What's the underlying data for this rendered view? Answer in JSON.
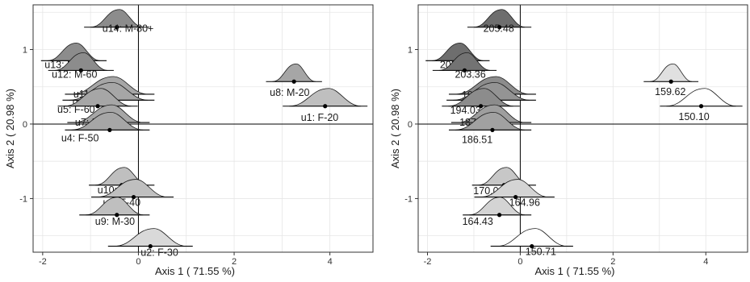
{
  "chart_data": [
    {
      "type": "scatter",
      "xlabel": "Axis  1  ( 71.55 %)",
      "ylabel": "Axis  2  ( 20.98 %)",
      "xlim": [
        -2.2,
        4.9
      ],
      "ylim": [
        -1.72,
        1.6
      ],
      "xticks": [
        -2,
        0,
        2,
        4
      ],
      "yticks": [
        -1,
        0,
        1
      ],
      "grid": true,
      "points": [
        {
          "label": "u14: M-80+",
          "x": -0.45,
          "y": 1.3,
          "shade": "#8c8c8c",
          "ci": [
            -1.0,
            0.1
          ]
        },
        {
          "label": "u13: M-70",
          "x": -1.35,
          "y": 0.85,
          "shade": "#8c8c8c",
          "ci": [
            -1.9,
            -0.8
          ]
        },
        {
          "label": "u12: M-60",
          "x": -1.2,
          "y": 0.72,
          "shade": "#8c8c8c",
          "ci": [
            -1.75,
            -0.65
          ]
        },
        {
          "label": "u8: M-20",
          "x": 3.25,
          "y": 0.57,
          "shade": "#a6a6a6",
          "ci": [
            2.8,
            3.7
          ]
        },
        {
          "label": "u11: M-50",
          "x": -0.6,
          "y": 0.4,
          "shade": "#a6a6a6",
          "ci": [
            -1.4,
            0.2
          ]
        },
        {
          "label": "u6: F-70",
          "x": -0.62,
          "y": 0.32,
          "shade": "#a6a6a6",
          "ci": [
            -1.45,
            0.2
          ]
        },
        {
          "label": "u5: F-60",
          "x": -0.85,
          "y": 0.24,
          "shade": "#a6a6a6",
          "ci": [
            -1.55,
            -0.15
          ]
        },
        {
          "label": "u1: F-20",
          "x": 3.9,
          "y": 0.24,
          "shade": "#bfbfbf",
          "ci": [
            3.15,
            4.65
          ]
        },
        {
          "label": "u7: F-80+",
          "x": -0.65,
          "y": 0.02,
          "shade": "#a6a6a6",
          "ci": [
            -1.35,
            0.1
          ]
        },
        {
          "label": "u4: F-50",
          "x": -0.6,
          "y": -0.08,
          "shade": "#a6a6a6",
          "ci": [
            -1.4,
            0.1
          ]
        },
        {
          "label": "u10: M-40",
          "x": -0.35,
          "y": -0.82,
          "shade": "#bfbfbf",
          "ci": [
            -0.9,
            0.2
          ]
        },
        {
          "label": "u3: F-40",
          "x": -0.1,
          "y": -0.98,
          "shade": "#bfbfbf",
          "ci": [
            -0.85,
            0.6
          ]
        },
        {
          "label": "u9: M-30",
          "x": -0.45,
          "y": -1.22,
          "shade": "#bfbfbf",
          "ci": [
            -1.1,
            0.1
          ]
        },
        {
          "label": "u2: F-30",
          "x": 0.25,
          "y": -1.64,
          "shade": "#d9d9d9",
          "ci": [
            -0.5,
            1.0
          ]
        }
      ]
    },
    {
      "type": "scatter",
      "xlabel": "Axis  1  ( 71.55 %)",
      "ylabel": "Axis  2  ( 20.98 %)",
      "xlim": [
        -2.2,
        4.9
      ],
      "ylim": [
        -1.72,
        1.6
      ],
      "xticks": [
        -2,
        0,
        2,
        4
      ],
      "yticks": [
        -1,
        0,
        1
      ],
      "grid": true,
      "points": [
        {
          "label": "205.48",
          "x": -0.45,
          "y": 1.3,
          "shade": "#6e6e6e",
          "ci": [
            -1.0,
            0.1
          ]
        },
        {
          "label": "205.66",
          "x": -1.35,
          "y": 0.85,
          "shade": "#6e6e6e",
          "ci": [
            -1.9,
            -0.8
          ]
        },
        {
          "label": "203.36",
          "x": -1.2,
          "y": 0.72,
          "shade": "#737373",
          "ci": [
            -1.75,
            -0.65
          ]
        },
        {
          "label": "159.62",
          "x": 3.25,
          "y": 0.57,
          "shade": "#e0e0e0",
          "ci": [
            2.8,
            3.7
          ]
        },
        {
          "label": "194.32",
          "x": -0.6,
          "y": 0.4,
          "shade": "#8c8c8c",
          "ci": [
            -1.4,
            0.2
          ]
        },
        {
          "label": "191.20",
          "x": -0.62,
          "y": 0.32,
          "shade": "#949494",
          "ci": [
            -1.45,
            0.2
          ]
        },
        {
          "label": "194.03",
          "x": -0.85,
          "y": 0.24,
          "shade": "#8c8c8c",
          "ci": [
            -1.55,
            -0.15
          ]
        },
        {
          "label": "150.10",
          "x": 3.9,
          "y": 0.24,
          "shade": "#ffffff",
          "ci": [
            3.15,
            4.65
          ]
        },
        {
          "label": "187.14",
          "x": -0.65,
          "y": 0.02,
          "shade": "#9e9e9e",
          "ci": [
            -1.35,
            0.1
          ]
        },
        {
          "label": "186.51",
          "x": -0.6,
          "y": -0.08,
          "shade": "#a1a1a1",
          "ci": [
            -1.4,
            0.1
          ]
        },
        {
          "label": "170.06",
          "x": -0.35,
          "y": -0.82,
          "shade": "#c7c7c7",
          "ci": [
            -0.9,
            0.2
          ]
        },
        {
          "label": "164.96",
          "x": -0.1,
          "y": -0.98,
          "shade": "#d4d4d4",
          "ci": [
            -0.85,
            0.6
          ]
        },
        {
          "label": "164.43",
          "x": -0.45,
          "y": -1.22,
          "shade": "#d4d4d4",
          "ci": [
            -1.1,
            0.1
          ]
        },
        {
          "label": "150.71",
          "x": 0.25,
          "y": -1.64,
          "shade": "#ffffff",
          "ci": [
            -0.5,
            1.0
          ]
        }
      ]
    }
  ]
}
